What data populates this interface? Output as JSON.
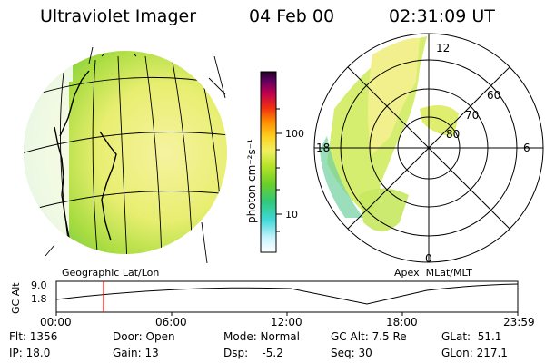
{
  "header": {
    "instrument": "Ultraviolet Imager",
    "date": "04 Feb 00",
    "time": "02:31:09 UT"
  },
  "colors": {
    "background": "#ffffff",
    "foreground": "#000000",
    "orbit_marker": "#ff0000",
    "colorbar": [
      "#ffffff",
      "#a8f0ff",
      "#30d0d0",
      "#30c060",
      "#80d020",
      "#c8e830",
      "#f0f060",
      "#ffd020",
      "#ff9000",
      "#f03010",
      "#c00050",
      "#600060",
      "#200020"
    ]
  },
  "left_panel": {
    "caption": "Geographic Lat/Lon",
    "image": "ultraviolet-earth-image"
  },
  "colorbar": {
    "unit_label": "photon cm⁻²s⁻¹",
    "tick_100": "100",
    "tick_10": "10"
  },
  "right_panel": {
    "caption": "Apex  MLat/MLT",
    "mlt_top": "12",
    "mlt_left": "18",
    "mlt_right": "6",
    "mlt_bottom": "0",
    "lat_60": "60",
    "lat_70": "70",
    "lat_80": "80"
  },
  "altitude_plot": {
    "axis_label": "GC Alt",
    "y_top": "9.0",
    "y_bottom": "1.8",
    "x_ticks": [
      "00:00",
      "06:00",
      "12:00",
      "18:00",
      "23:59"
    ]
  },
  "info": {
    "flt": "Flt: 1356",
    "ip": "IP: 18.0",
    "door": "Door: Open",
    "gain": "Gain: 13",
    "mode": "Mode: Normal",
    "dsp": "Dsp:    -5.2",
    "gc_alt": "GC Alt: 7.5 Re",
    "seq": "Seq: 30",
    "glat": "GLat:  51.1",
    "glon": "GLon: 217.1"
  }
}
